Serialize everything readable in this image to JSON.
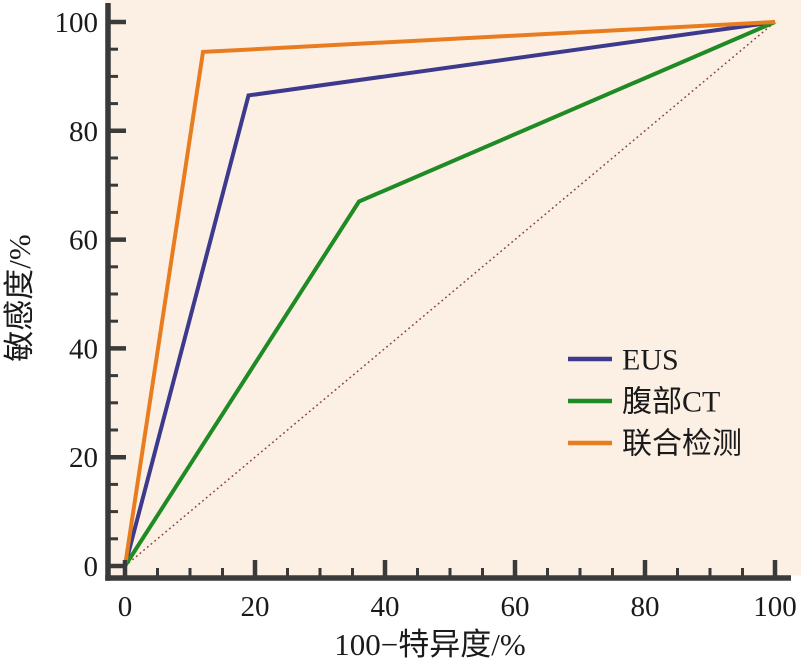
{
  "chart_data": {
    "type": "line",
    "title": "",
    "xlabel": "100−特异度/%",
    "ylabel": "敏感度/%",
    "xlim": [
      0,
      100
    ],
    "ylim": [
      0,
      100
    ],
    "x_major_ticks": [
      0,
      20,
      40,
      60,
      80,
      100
    ],
    "y_major_ticks": [
      0,
      20,
      40,
      60,
      80,
      100
    ],
    "minor_tick_step": 5,
    "grid": false,
    "legend_position": "inside-lower-right",
    "series": [
      {
        "name": "EUS",
        "color": "#3d3a8d",
        "points": [
          [
            0,
            0
          ],
          [
            19,
            86.5
          ],
          [
            100,
            100
          ]
        ]
      },
      {
        "name": "腹部CT",
        "color": "#1f8b24",
        "points": [
          [
            0,
            0
          ],
          [
            36,
            67
          ],
          [
            100,
            100
          ]
        ]
      },
      {
        "name": "联合检测",
        "color": "#e87d1f",
        "points": [
          [
            0,
            0
          ],
          [
            12,
            94.5
          ],
          [
            100,
            100
          ]
        ]
      }
    ],
    "reference_line": {
      "name": "chance-diagonal",
      "style": "dotted",
      "color": "#8a4440",
      "points": [
        [
          0,
          0
        ],
        [
          100,
          100
        ]
      ]
    }
  },
  "colors": {
    "plot_background": "#fcf0e5",
    "page_background": "#ffffff",
    "axis": "#3a3a3a",
    "text": "#1a1a1a"
  }
}
